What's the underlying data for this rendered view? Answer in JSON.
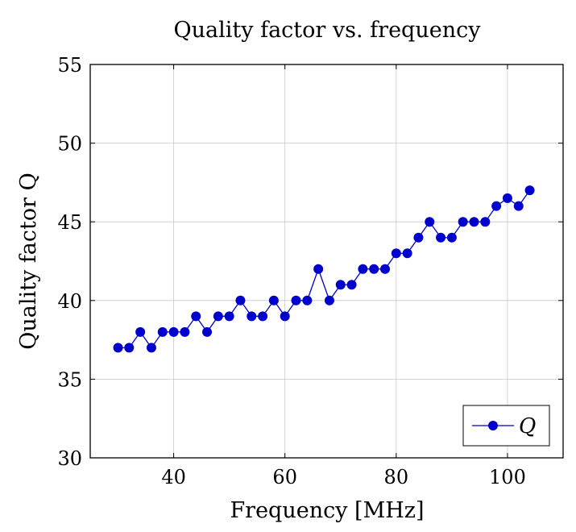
{
  "chart_data": {
    "type": "line",
    "title": "Quality factor vs. frequency",
    "xlabel": "Frequency [MHz]",
    "ylabel": "Quality factor Q",
    "xlim": [
      25,
      110
    ],
    "ylim": [
      30,
      55
    ],
    "xticks": [
      40,
      60,
      80,
      100
    ],
    "yticks": [
      30,
      35,
      40,
      45,
      50,
      55
    ],
    "grid": true,
    "legend_position": "bottom-right",
    "series": [
      {
        "name": "Q",
        "color": "#0000cc",
        "marker": "circle",
        "x": [
          30,
          32,
          34,
          36,
          38,
          40,
          42,
          44,
          46,
          48,
          50,
          52,
          54,
          56,
          58,
          60,
          62,
          64,
          66,
          68,
          70,
          72,
          74,
          76,
          78,
          80,
          82,
          84,
          86,
          88,
          90,
          92,
          94,
          96,
          98,
          100,
          102,
          104
        ],
        "y": [
          37,
          37,
          38,
          37,
          38,
          38,
          38,
          39,
          38,
          39,
          39,
          40,
          39,
          39,
          40,
          39,
          40,
          40,
          42,
          40,
          41,
          41,
          42,
          42,
          42,
          43,
          43,
          44,
          45,
          44,
          44,
          45,
          45,
          45,
          46,
          46.5,
          46,
          47
        ]
      }
    ]
  }
}
